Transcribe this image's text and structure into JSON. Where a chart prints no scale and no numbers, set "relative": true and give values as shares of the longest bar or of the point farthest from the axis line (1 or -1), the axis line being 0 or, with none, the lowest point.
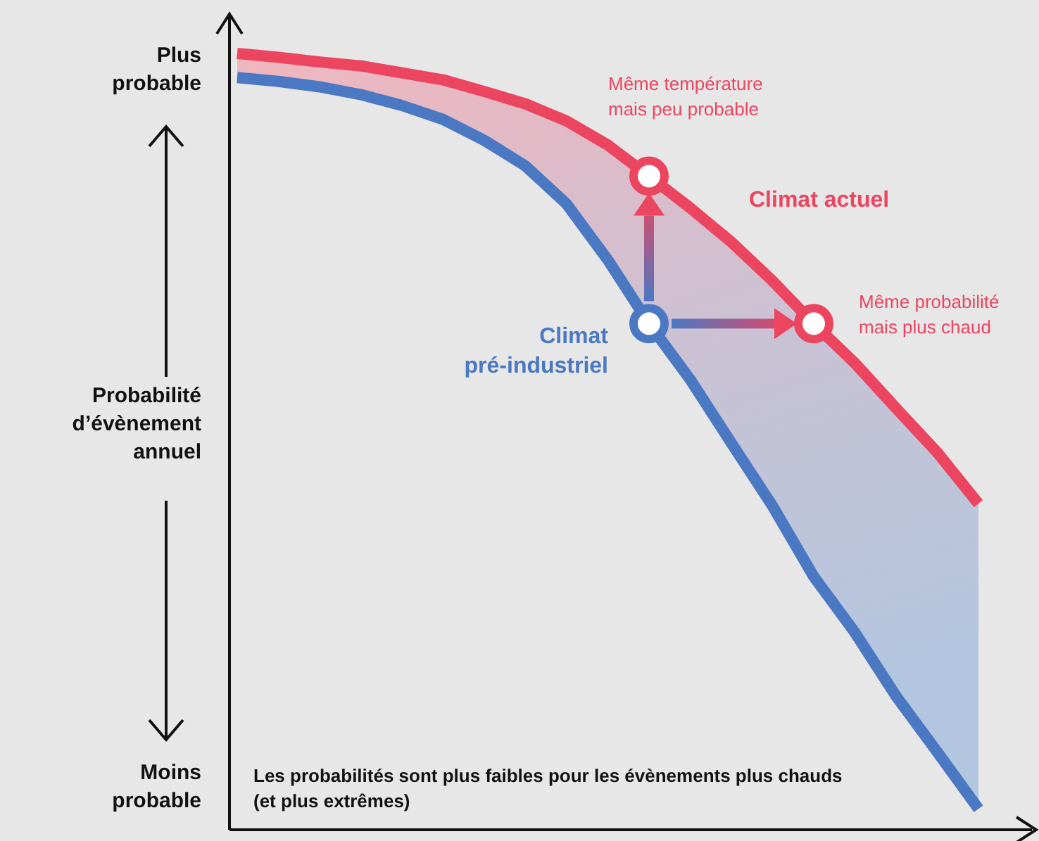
{
  "chart_data": {
    "type": "line",
    "relative": true,
    "ylabel": "Probabilité d’évènement annuel",
    "categories": [
      null,
      null,
      null,
      null,
      null,
      null,
      null,
      null,
      null,
      null,
      null,
      null,
      null,
      null,
      null,
      null,
      null,
      null,
      null
    ],
    "series": [
      {
        "name": "Climat actuel",
        "color": "#ec4560",
        "values": [
          1,
          0.995,
          0.989,
          0.984,
          0.975,
          0.966,
          0.951,
          0.935,
          0.913,
          0.882,
          0.842,
          0.801,
          0.757,
          0.707,
          0.652,
          0.601,
          0.543,
          0.486,
          0.42
        ]
      },
      {
        "name": "Climat pré-industriel",
        "color": "#4a78c2",
        "values": [
          0.969,
          0.964,
          0.957,
          0.947,
          0.933,
          0.915,
          0.888,
          0.855,
          0.806,
          0.734,
          0.652,
          0.58,
          0.498,
          0.417,
          0.326,
          0.254,
          0.172,
          0.1,
          0.027
        ]
      }
    ],
    "annotations": [
      "Plus probable",
      "Moins probable",
      "Même température mais peu probable",
      "Même probabilité mais plus chaud",
      "Les probabilités sont plus faibles pour les évènements plus chauds (et plus extrêmes)"
    ]
  }
}
